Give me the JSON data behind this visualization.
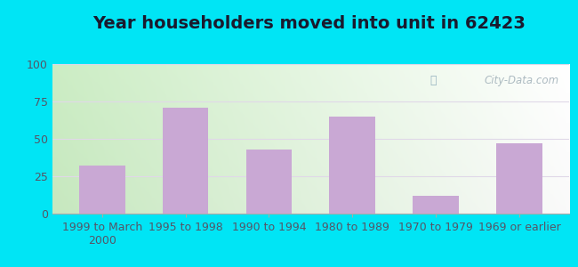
{
  "title": "Year householders moved into unit in 62423",
  "categories": [
    "1999 to March\n2000",
    "1995 to 1998",
    "1990 to 1994",
    "1980 to 1989",
    "1970 to 1979",
    "1969 or earlier"
  ],
  "values": [
    32,
    71,
    43,
    65,
    12,
    47
  ],
  "bar_color": "#c9a8d4",
  "ylim": [
    0,
    100
  ],
  "yticks": [
    0,
    25,
    50,
    75,
    100
  ],
  "background_outer": "#00e5f5",
  "background_inner_topleft": "#d8ecd8",
  "background_inner_topright": "#f5f8f5",
  "background_inner_bottomleft": "#c8e8c8",
  "background_inner_bottomright": "#e8f4e8",
  "grid_color": "#e0d8e8",
  "title_fontsize": 14,
  "tick_fontsize": 9,
  "watermark": "City-Data.com",
  "title_color": "#1a1a2e",
  "tick_color": "#555566"
}
